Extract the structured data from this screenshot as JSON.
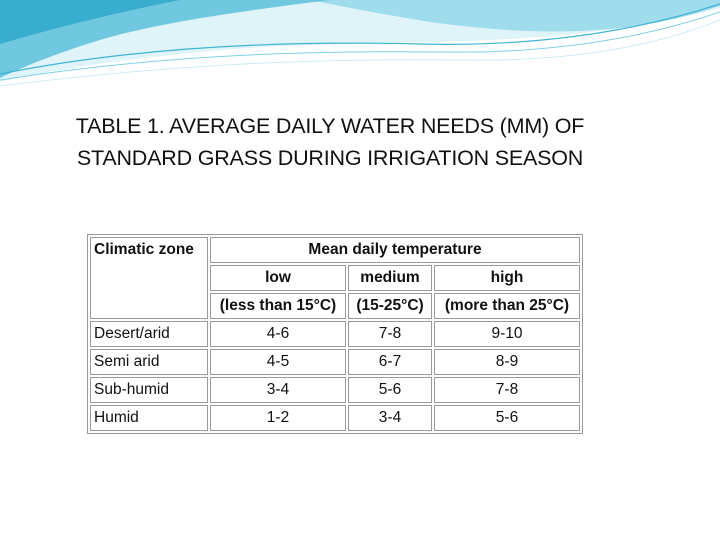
{
  "slide": {
    "title_line1": "TABLE 1. AVERAGE DAILY WATER NEEDS (MM) OF",
    "title_line2": "STANDARD GRASS DURING IRRIGATION SEASON"
  },
  "table": {
    "corner_header": "Climatic zone",
    "group_header": "Mean daily temperature",
    "columns": [
      {
        "label": "low",
        "range": "(less than 15°C)"
      },
      {
        "label": "medium",
        "range": "(15-25°C)"
      },
      {
        "label": "high",
        "range": "(more than 25°C)"
      }
    ],
    "rows": [
      {
        "zone": "Desert/arid",
        "low": "4-6",
        "medium": "7-8",
        "high": "9-10"
      },
      {
        "zone": "Semi arid",
        "low": "4-5",
        "medium": "6-7",
        "high": "8-9"
      },
      {
        "zone": "Sub-humid",
        "low": "3-4",
        "medium": "5-6",
        "high": "7-8"
      },
      {
        "zone": "Humid",
        "low": "1-2",
        "medium": "3-4",
        "high": "5-6"
      }
    ]
  },
  "colors": {
    "header_wave_light": "#cfeff6",
    "header_wave_mid": "#7fd0e6",
    "header_wave_dark": "#2aa6c9",
    "table_border": "#9a9a9a"
  }
}
